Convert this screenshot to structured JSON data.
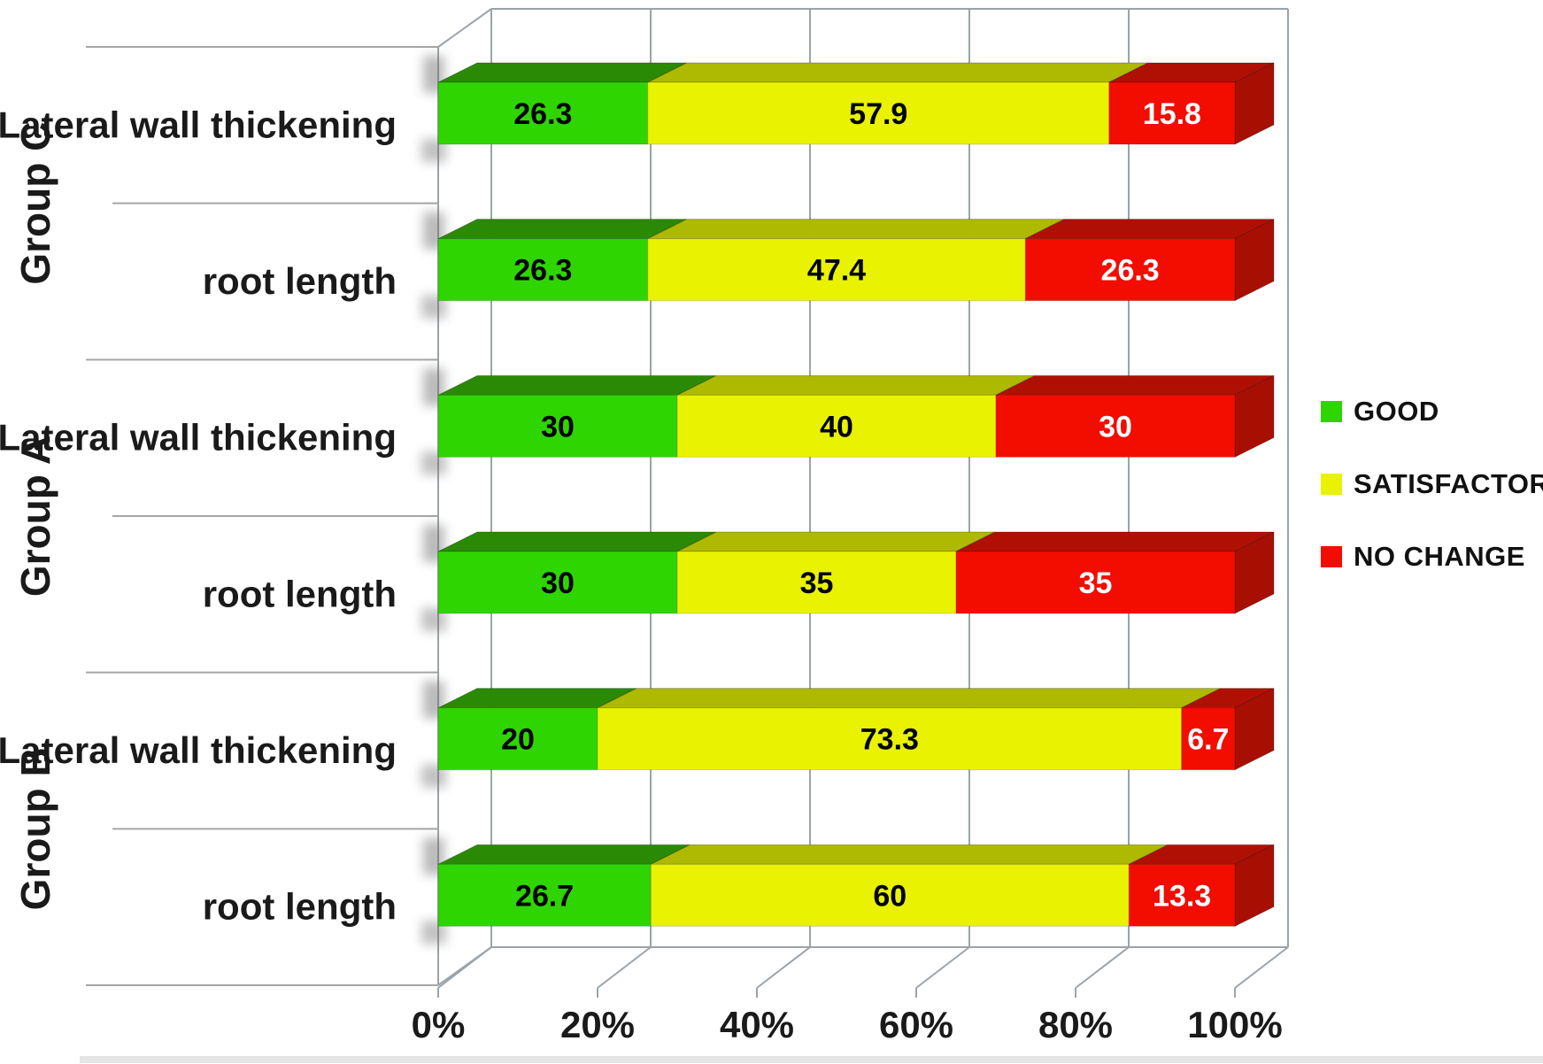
{
  "chart_data": {
    "type": "bar",
    "variant": "3d-horizontal-stacked-percent",
    "title": "",
    "xlabel": "",
    "ylabel": "",
    "xlim": [
      0,
      100
    ],
    "grid": true,
    "x_ticks": [
      "0%",
      "20%",
      "40%",
      "60%",
      "80%",
      "100%"
    ],
    "series_names": [
      "GOOD",
      "SATISFACTORY",
      "NO CHANGE"
    ],
    "legend": [
      {
        "label": "GOOD",
        "color": "#2FD500"
      },
      {
        "label": "SATISFACTORY",
        "color": "#E9F200"
      },
      {
        "label": "NO CHANGE",
        "color": "#F20D00"
      }
    ],
    "legend_position": "right",
    "groups": [
      {
        "label": "Group C",
        "rows": [
          {
            "label": "Lateral wall thickening",
            "values": [
              26.3,
              57.9,
              15.8
            ]
          },
          {
            "label": "root length",
            "values": [
              26.3,
              47.4,
              26.3
            ]
          }
        ]
      },
      {
        "label": "Group A",
        "rows": [
          {
            "label": "Lateral wall thickening",
            "values": [
              30,
              40,
              30
            ]
          },
          {
            "label": "root length",
            "values": [
              30,
              35,
              35
            ]
          }
        ]
      },
      {
        "label": "Group B",
        "rows": [
          {
            "label": "Lateral wall thickening",
            "values": [
              20,
              73.3,
              6.7
            ]
          },
          {
            "label": "root length",
            "values": [
              26.7,
              60,
              13.3
            ]
          }
        ]
      }
    ],
    "colors": {
      "series": [
        {
          "name": "GOOD",
          "front": "#2FD500",
          "top": "#2B8A05",
          "side": "#1F7A04",
          "text": "#000000"
        },
        {
          "name": "SATISFACTORY",
          "front": "#E9F200",
          "top": "#AEB902",
          "side": "#9DA802",
          "text": "#000000"
        },
        {
          "name": "NO CHANGE",
          "front": "#F20D00",
          "top": "#B01004",
          "side": "#A80F03",
          "text": "#FFFFFF"
        }
      ],
      "frame": "#9BA3A9",
      "separator": "#A6A6A6",
      "label_text": "#1A1A1A"
    }
  }
}
